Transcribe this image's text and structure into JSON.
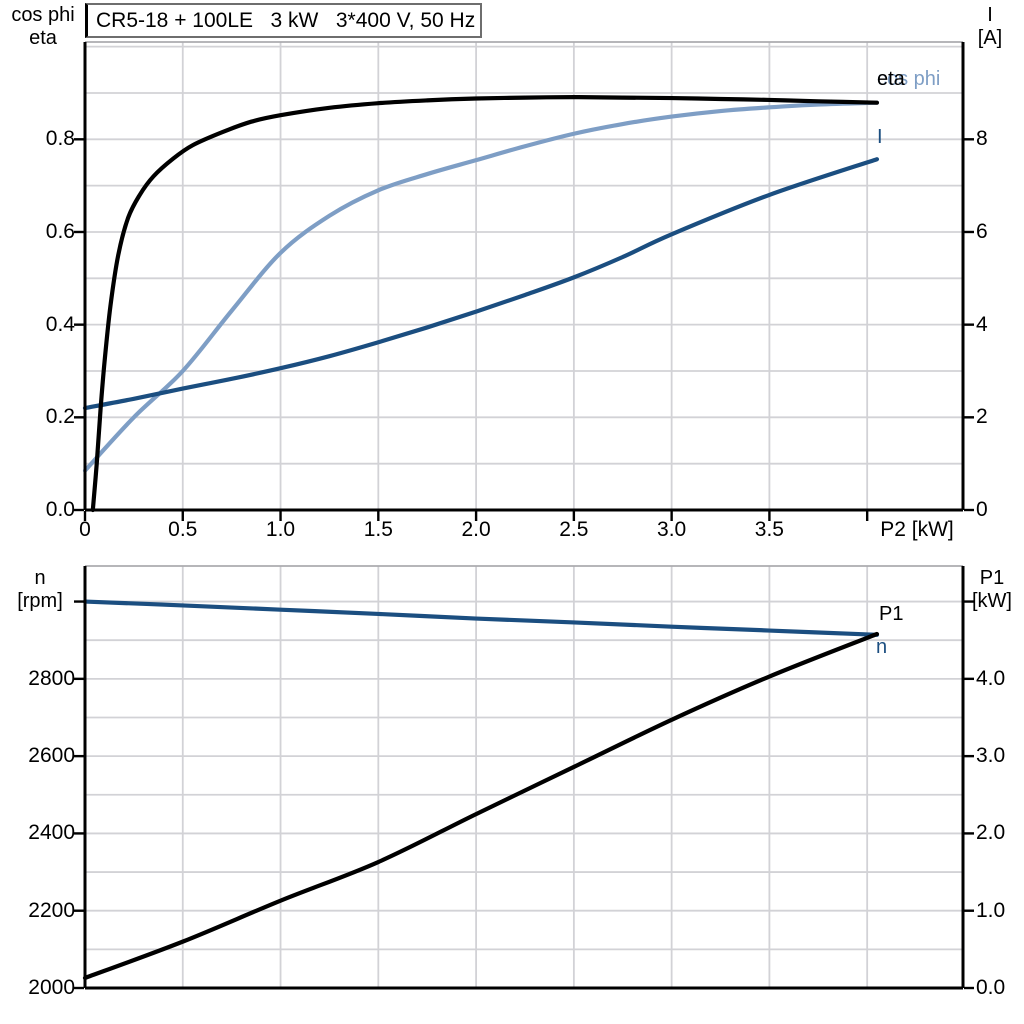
{
  "colors": {
    "black": "#000000",
    "dark_blue": "#1b4e80",
    "light_blue": "#7e9ec5",
    "grid": "#d2d2d6",
    "frame": "#ababaf",
    "box_border": "#6e6e6e"
  },
  "chart_data": [
    {
      "type": "line",
      "title": "CR5-18 + 100LE   3 kW   3*400 V, 50 Hz",
      "xlabel": "P2 [kW]",
      "ylabel_left": [
        "cos phi",
        "eta"
      ],
      "ylabel_right": [
        "I",
        "[A]"
      ],
      "xlim": [
        0,
        4.49
      ],
      "ylim_left": [
        0,
        1.01
      ],
      "ylim_right": [
        0,
        10.1
      ],
      "grid": "on",
      "x_grid": [
        0.5,
        1.0,
        1.5,
        2.0,
        2.5,
        3.0,
        3.5,
        4.0
      ],
      "y_grid_left": [
        0.1,
        0.2,
        0.3,
        0.4,
        0.5,
        0.6,
        0.7,
        0.8,
        0.9,
        1.0
      ],
      "x_ticks": [
        {
          "v": 0,
          "label": "0"
        },
        {
          "v": 0.5,
          "label": "0.5"
        },
        {
          "v": 1.0,
          "label": "1.0"
        },
        {
          "v": 1.5,
          "label": "1.5"
        },
        {
          "v": 2.0,
          "label": "2.0"
        },
        {
          "v": 2.5,
          "label": "2.5"
        },
        {
          "v": 3.0,
          "label": "3.0"
        },
        {
          "v": 3.5,
          "label": "3.5"
        },
        {
          "v": 4.0,
          "label": ""
        }
      ],
      "y_ticks_left": [
        {
          "v": 0.0,
          "label": "0.0"
        },
        {
          "v": 0.2,
          "label": "0.2"
        },
        {
          "v": 0.4,
          "label": "0.4"
        },
        {
          "v": 0.6,
          "label": "0.6"
        },
        {
          "v": 0.8,
          "label": "0.8"
        }
      ],
      "y_ticks_right": [
        {
          "v": 0,
          "label": "0"
        },
        {
          "v": 2,
          "label": "2"
        },
        {
          "v": 4,
          "label": "4"
        },
        {
          "v": 6,
          "label": "6"
        },
        {
          "v": 8,
          "label": "8"
        }
      ],
      "series": [
        {
          "name": "cos phi",
          "label": "cos phi",
          "axis": "left",
          "color": "light_blue",
          "points": [
            [
              0,
              0.085
            ],
            [
              0.25,
              0.2
            ],
            [
              0.5,
              0.3
            ],
            [
              0.75,
              0.43
            ],
            [
              1.0,
              0.555
            ],
            [
              1.25,
              0.635
            ],
            [
              1.5,
              0.69
            ],
            [
              1.75,
              0.725
            ],
            [
              2.0,
              0.755
            ],
            [
              2.25,
              0.785
            ],
            [
              2.5,
              0.812
            ],
            [
              2.75,
              0.833
            ],
            [
              3.0,
              0.849
            ],
            [
              3.25,
              0.861
            ],
            [
              3.5,
              0.869
            ],
            [
              3.75,
              0.875
            ],
            [
              4.05,
              0.879
            ]
          ]
        },
        {
          "name": "I",
          "label": "I",
          "axis": "right",
          "color": "dark_blue",
          "points": [
            [
              0,
              2.2
            ],
            [
              0.25,
              2.4
            ],
            [
              0.5,
              2.62
            ],
            [
              0.75,
              2.83
            ],
            [
              1.0,
              3.06
            ],
            [
              1.25,
              3.32
            ],
            [
              1.5,
              3.62
            ],
            [
              1.75,
              3.94
            ],
            [
              2.0,
              4.28
            ],
            [
              2.25,
              4.64
            ],
            [
              2.5,
              5.02
            ],
            [
              2.75,
              5.46
            ],
            [
              3.0,
              5.95
            ],
            [
              3.5,
              6.8
            ],
            [
              4.05,
              7.57
            ]
          ]
        },
        {
          "name": "eta",
          "label": "eta",
          "axis": "left",
          "color": "black",
          "points": [
            [
              0.04,
              0
            ],
            [
              0.06,
              0.1
            ],
            [
              0.08,
              0.22
            ],
            [
              0.1,
              0.32
            ],
            [
              0.13,
              0.44
            ],
            [
              0.17,
              0.55
            ],
            [
              0.22,
              0.63
            ],
            [
              0.28,
              0.68
            ],
            [
              0.35,
              0.72
            ],
            [
              0.45,
              0.758
            ],
            [
              0.55,
              0.787
            ],
            [
              0.7,
              0.815
            ],
            [
              0.85,
              0.838
            ],
            [
              1.0,
              0.852
            ],
            [
              1.25,
              0.868
            ],
            [
              1.5,
              0.878
            ],
            [
              1.75,
              0.884
            ],
            [
              2.0,
              0.888
            ],
            [
              2.25,
              0.89
            ],
            [
              2.5,
              0.891
            ],
            [
              2.75,
              0.89
            ],
            [
              3.0,
              0.889
            ],
            [
              3.25,
              0.887
            ],
            [
              3.5,
              0.885
            ],
            [
              3.75,
              0.882
            ],
            [
              4.05,
              0.879
            ]
          ]
        }
      ]
    },
    {
      "type": "line",
      "title": "",
      "xlabel": "",
      "ylabel_left": [
        "n",
        "[rpm]"
      ],
      "ylabel_right": [
        "P1",
        "[kW]"
      ],
      "xlim": [
        0,
        4.49
      ],
      "ylim_left": [
        2000,
        3092
      ],
      "ylim_right": [
        0,
        5.46
      ],
      "grid": "on",
      "x_grid": [
        0.5,
        1.0,
        1.5,
        2.0,
        2.5,
        3.0,
        3.5,
        4.0
      ],
      "y_grid_left": [
        2100,
        2200,
        2300,
        2400,
        2500,
        2600,
        2700,
        2800,
        2900,
        3000
      ],
      "x_ticks": [],
      "y_ticks_left": [
        {
          "v": 3000,
          "label": ""
        },
        {
          "v": 2800,
          "label": "2800"
        },
        {
          "v": 2600,
          "label": "2600"
        },
        {
          "v": 2400,
          "label": "2400"
        },
        {
          "v": 2200,
          "label": "2200"
        },
        {
          "v": 2000,
          "label": "2000"
        }
      ],
      "y_ticks_right": [
        {
          "v": 5.0,
          "label": ""
        },
        {
          "v": 4.0,
          "label": "4.0"
        },
        {
          "v": 3.0,
          "label": "3.0"
        },
        {
          "v": 2.0,
          "label": "2.0"
        },
        {
          "v": 1.0,
          "label": "1.0"
        },
        {
          "v": 0.0,
          "label": "0.0"
        }
      ],
      "series": [
        {
          "name": "n",
          "label": "n",
          "axis": "left",
          "color": "dark_blue",
          "points": [
            [
              0,
              3000
            ],
            [
              0.5,
              2990
            ],
            [
              1.0,
              2979
            ],
            [
              1.5,
              2968
            ],
            [
              2.0,
              2956
            ],
            [
              2.5,
              2946
            ],
            [
              3.0,
              2935
            ],
            [
              3.5,
              2925
            ],
            [
              4.05,
              2914
            ]
          ]
        },
        {
          "name": "P1",
          "label": "P1",
          "axis": "right",
          "color": "black",
          "points": [
            [
              0,
              0.13
            ],
            [
              0.5,
              0.6
            ],
            [
              1.0,
              1.13
            ],
            [
              1.5,
              1.63
            ],
            [
              2.0,
              2.25
            ],
            [
              2.5,
              2.86
            ],
            [
              3.0,
              3.47
            ],
            [
              3.5,
              4.03
            ],
            [
              4.05,
              4.58
            ]
          ]
        }
      ]
    }
  ]
}
